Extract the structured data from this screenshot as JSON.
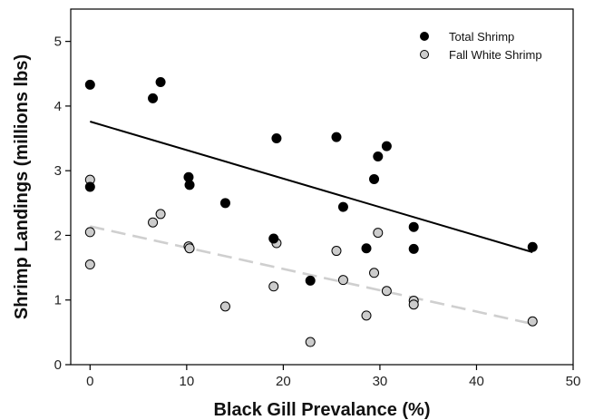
{
  "chart_data": {
    "type": "scatter",
    "xlabel": "Black Gill Prevalance (%)",
    "ylabel": "Shrimp Landings (millions lbs)",
    "xlim": [
      -2,
      50
    ],
    "ylim": [
      0,
      5.5
    ],
    "xticks": [
      0,
      10,
      20,
      30,
      40,
      50
    ],
    "yticks": [
      0,
      1,
      2,
      3,
      4,
      5
    ],
    "grid": false,
    "legend_position": "top-right",
    "series": [
      {
        "name": "Total Shrimp",
        "color": "#000000",
        "points": [
          [
            0,
            4.33
          ],
          [
            0,
            2.75
          ],
          [
            6.5,
            4.12
          ],
          [
            7.3,
            4.37
          ],
          [
            10.2,
            2.9
          ],
          [
            10.3,
            2.78
          ],
          [
            14,
            2.5
          ],
          [
            19,
            1.95
          ],
          [
            19.3,
            3.5
          ],
          [
            22.8,
            1.3
          ],
          [
            25.5,
            3.52
          ],
          [
            26.2,
            2.44
          ],
          [
            28.6,
            1.8
          ],
          [
            29.4,
            2.87
          ],
          [
            29.8,
            3.22
          ],
          [
            30.7,
            3.38
          ],
          [
            33.5,
            2.13
          ],
          [
            33.5,
            1.79
          ],
          [
            45.8,
            1.82
          ]
        ],
        "trend": {
          "x": [
            0,
            45.8
          ],
          "y": [
            3.76,
            1.74
          ],
          "style": "solid"
        }
      },
      {
        "name": "Fall White Shrimp",
        "color": "#cccccc",
        "points": [
          [
            0,
            2.86
          ],
          [
            0,
            2.05
          ],
          [
            0,
            1.55
          ],
          [
            6.5,
            2.2
          ],
          [
            7.3,
            2.33
          ],
          [
            10.2,
            1.83
          ],
          [
            10.3,
            1.8
          ],
          [
            14,
            0.9
          ],
          [
            19,
            1.21
          ],
          [
            19.3,
            1.88
          ],
          [
            22.8,
            0.35
          ],
          [
            25.5,
            1.76
          ],
          [
            26.2,
            1.31
          ],
          [
            28.6,
            0.76
          ],
          [
            29.4,
            1.42
          ],
          [
            29.8,
            2.04
          ],
          [
            30.7,
            1.14
          ],
          [
            33.5,
            0.99
          ],
          [
            33.5,
            0.93
          ],
          [
            45.8,
            0.67
          ]
        ],
        "trend": {
          "x": [
            0,
            45.8
          ],
          "y": [
            2.14,
            0.63
          ],
          "style": "dashed"
        }
      }
    ]
  }
}
